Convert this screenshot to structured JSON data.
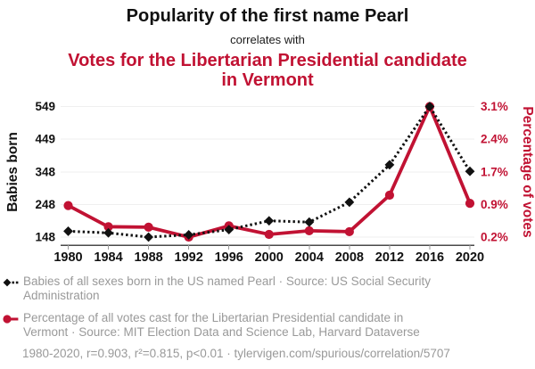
{
  "header": {
    "title": "Popularity of the first name Pearl",
    "connector": "correlates with",
    "subtitle": "Votes for the Libertarian Presidential candidate in Vermont"
  },
  "colors": {
    "accent_red": "#c11233",
    "series_black": "#111111",
    "legend_gray": "#999999",
    "grid_gray": "#efefef"
  },
  "chart_data": {
    "type": "line",
    "x": [
      1980,
      1984,
      1988,
      1992,
      1996,
      2000,
      2004,
      2008,
      2012,
      2016,
      2020
    ],
    "series": [
      {
        "name": "Babies of all sexes born in the US named Pearl",
        "axis": "left",
        "color": "#111111",
        "line_style": "dotted",
        "marker": "diamond",
        "values": [
          166,
          161,
          148,
          155,
          171,
          198,
          194,
          255,
          370,
          549,
          350
        ]
      },
      {
        "name": "Percentage of all votes cast for the Libertarian Presidential candidate in Vermont",
        "axis": "right",
        "color": "#c11233",
        "line_style": "solid",
        "marker": "circle",
        "values": [
          0.9,
          0.43,
          0.42,
          0.2,
          0.45,
          0.26,
          0.34,
          0.32,
          1.13,
          3.1,
          0.95
        ]
      }
    ],
    "left_axis": {
      "label": "Babies born",
      "ticks": [
        "148",
        "248",
        "348",
        "449",
        "549"
      ],
      "min": 148,
      "max": 549
    },
    "right_axis": {
      "label": "Percentage of votes",
      "ticks": [
        "0.2%",
        "0.9%",
        "1.7%",
        "2.4%",
        "3.1%"
      ],
      "min": 0.2,
      "max": 3.1
    },
    "grid": true,
    "legend_position": "bottom"
  },
  "legend": [
    {
      "text": "Babies of all sexes born in the US named Pearl · Source: US Social Security Administration"
    },
    {
      "text": "Percentage of all votes cast for the Libertarian Presidential candidate in Vermont · Source: MIT Election Data and Science Lab, Harvard Dataverse"
    }
  ],
  "footer": {
    "stats": "1980-2020, r=0.903, r²=0.815, p<0.01 · tylervigen.com/spurious/correlation/5707"
  }
}
